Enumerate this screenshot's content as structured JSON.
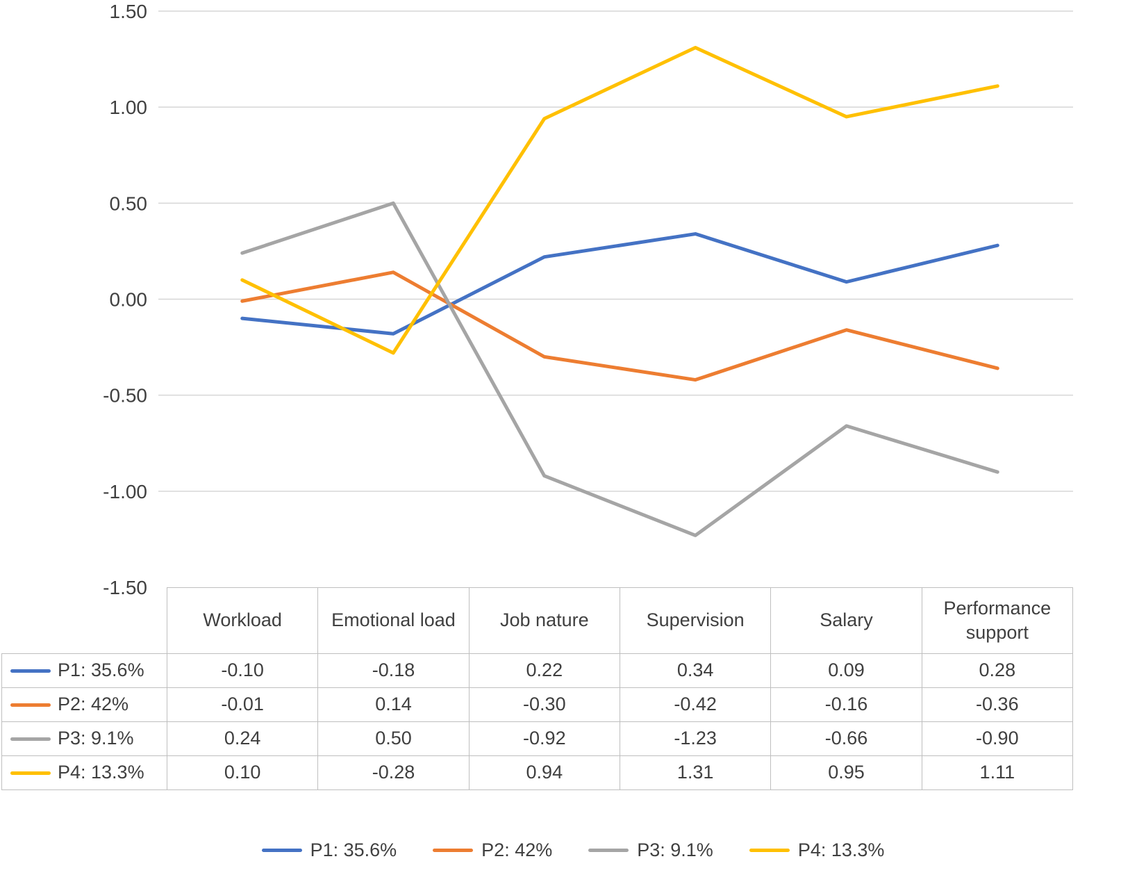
{
  "chart_data": {
    "type": "line",
    "title": "",
    "xlabel": "",
    "ylabel": "",
    "categories": [
      "Workload",
      "Emotional load",
      "Job nature",
      "Supervision",
      "Salary",
      "Performance support"
    ],
    "series": [
      {
        "name": "P1: 35.6%",
        "color": "#4472C4",
        "values": [
          -0.1,
          -0.18,
          0.22,
          0.34,
          0.09,
          0.28
        ]
      },
      {
        "name": "P2: 42%",
        "color": "#ED7D31",
        "values": [
          -0.01,
          0.14,
          -0.3,
          -0.42,
          -0.16,
          -0.36
        ]
      },
      {
        "name": "P3: 9.1%",
        "color": "#A5A5A5",
        "values": [
          0.24,
          0.5,
          -0.92,
          -1.23,
          -0.66,
          -0.9
        ]
      },
      {
        "name": "P4: 13.3%",
        "color": "#FFC000",
        "values": [
          0.1,
          -0.28,
          0.94,
          1.31,
          0.95,
          1.11
        ]
      }
    ],
    "ylim": [
      -1.5,
      1.5
    ],
    "ytick_step": 0.5,
    "ytick_labels": [
      "1.50",
      "1.00",
      "0.50",
      "0.00",
      "-0.50",
      "-1.00",
      "-1.50"
    ],
    "grid": true,
    "gridline_color": "#D6D6D6",
    "legend_position": "bottom",
    "legend_entries": [
      "P1: 35.6%",
      "P2: 42%",
      "P3: 9.1%",
      "P4: 13.3%"
    ],
    "data_table_shown": true,
    "value_decimals": 2
  }
}
